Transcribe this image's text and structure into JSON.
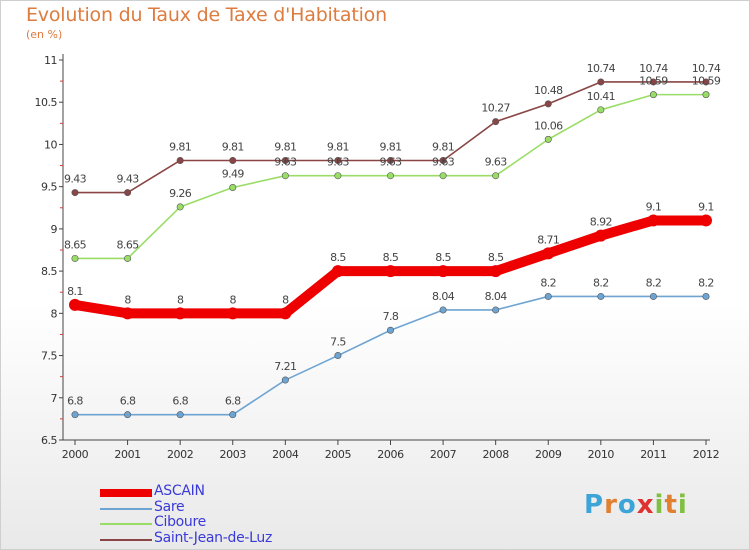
{
  "title": "Evolution du Taux de Taxe d'Habitation",
  "subtitle": "(en %)",
  "logo": {
    "text": "Proxiti",
    "letters": [
      "P",
      "r",
      "o",
      "x",
      "i",
      "t",
      "i"
    ],
    "letter_colors": [
      "#3da4d8",
      "#e08030",
      "#3da4d8",
      "#e03030",
      "#80c040",
      "#e08030",
      "#80c040"
    ]
  },
  "chart_data": {
    "type": "line",
    "title": "Evolution du Taux de Taxe d'Habitation",
    "ylabel": "(en %)",
    "xlabel": "",
    "x": [
      2000,
      2001,
      2002,
      2003,
      2004,
      2005,
      2006,
      2007,
      2008,
      2009,
      2010,
      2011,
      2012
    ],
    "ylim": [
      6.5,
      11
    ],
    "yticks": [
      6.5,
      7,
      7.5,
      8,
      8.5,
      9,
      9.5,
      10,
      10.5,
      11
    ],
    "ytick_labels": [
      "6.5",
      "7",
      "7.5",
      "8",
      "8.5",
      "9",
      "9.5",
      "10",
      "10.5",
      "11"
    ],
    "grid": false,
    "legend_position": "bottom-left",
    "series": [
      {
        "name": "ASCAIN",
        "color": "#ee0000",
        "emphasis": true,
        "values": [
          8.1,
          8,
          8,
          8,
          8,
          8.5,
          8.5,
          8.5,
          8.5,
          8.71,
          8.92,
          9.1,
          9.1
        ],
        "labels": [
          "8.1",
          "8",
          "8",
          "8",
          "8",
          "8.5",
          "8.5",
          "8.5",
          "8.5",
          "8.71",
          "8.92",
          "9.1",
          "9.1"
        ]
      },
      {
        "name": "Sare",
        "color": "#6ea4d2",
        "emphasis": false,
        "values": [
          6.8,
          6.8,
          6.8,
          6.8,
          7.21,
          7.5,
          7.8,
          8.04,
          8.04,
          8.2,
          8.2,
          8.2,
          8.2
        ],
        "labels": [
          "6.8",
          "6.8",
          "6.8",
          "6.8",
          "7.21",
          "7.5",
          "7.8",
          "8.04",
          "8.04",
          "8.2",
          "8.2",
          "8.2",
          "8.2"
        ]
      },
      {
        "name": "Ciboure",
        "color": "#99dd66",
        "emphasis": false,
        "values": [
          8.65,
          8.65,
          9.26,
          9.49,
          9.63,
          9.63,
          9.63,
          9.63,
          9.63,
          10.06,
          10.41,
          10.59,
          10.59
        ],
        "labels": [
          "8.65",
          "8.65",
          "9.26",
          "9.49",
          "9.63",
          "9.63",
          "9.63",
          "9.63",
          "9.63",
          "10.06",
          "10.41",
          "10.59",
          "10.59"
        ]
      },
      {
        "name": "Saint-Jean-de-Luz",
        "color": "#8a4646",
        "emphasis": false,
        "values": [
          9.43,
          9.43,
          9.81,
          9.81,
          9.81,
          9.81,
          9.81,
          9.81,
          10.27,
          10.48,
          10.74,
          10.74,
          10.74
        ],
        "labels": [
          "9.43",
          "9.43",
          "9.81",
          "9.81",
          "9.81",
          "9.81",
          "9.81",
          "9.81",
          "10.27",
          "10.48",
          "10.74",
          "10.74",
          "10.74"
        ]
      }
    ]
  }
}
